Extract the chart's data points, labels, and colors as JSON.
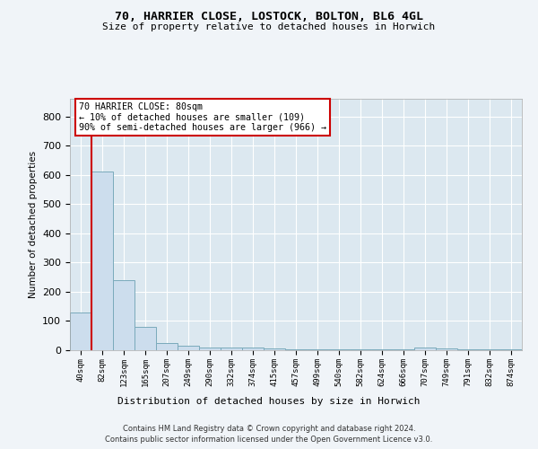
{
  "title_line1": "70, HARRIER CLOSE, LOSTOCK, BOLTON, BL6 4GL",
  "title_line2": "Size of property relative to detached houses in Horwich",
  "xlabel": "Distribution of detached houses by size in Horwich",
  "ylabel": "Number of detached properties",
  "bar_labels": [
    "40sqm",
    "82sqm",
    "123sqm",
    "165sqm",
    "207sqm",
    "249sqm",
    "290sqm",
    "332sqm",
    "374sqm",
    "415sqm",
    "457sqm",
    "499sqm",
    "540sqm",
    "582sqm",
    "624sqm",
    "666sqm",
    "707sqm",
    "749sqm",
    "791sqm",
    "832sqm",
    "874sqm"
  ],
  "bar_values": [
    130,
    610,
    240,
    80,
    25,
    15,
    10,
    8,
    8,
    5,
    3,
    3,
    2,
    2,
    2,
    2,
    8,
    5,
    2,
    2,
    2
  ],
  "bar_color": "#ccdded",
  "bar_edge_color": "#7aaabb",
  "ylim": [
    0,
    860
  ],
  "yticks": [
    0,
    100,
    200,
    300,
    400,
    500,
    600,
    700,
    800
  ],
  "red_line_index": 1,
  "annotation_text": "70 HARRIER CLOSE: 80sqm\n← 10% of detached houses are smaller (109)\n90% of semi-detached houses are larger (966) →",
  "annotation_box_color": "#ffffff",
  "annotation_edge_color": "#cc0000",
  "footer_line1": "Contains HM Land Registry data © Crown copyright and database right 2024.",
  "footer_line2": "Contains public sector information licensed under the Open Government Licence v3.0.",
  "background_color": "#f0f4f8",
  "plot_bg_color": "#dce8f0"
}
